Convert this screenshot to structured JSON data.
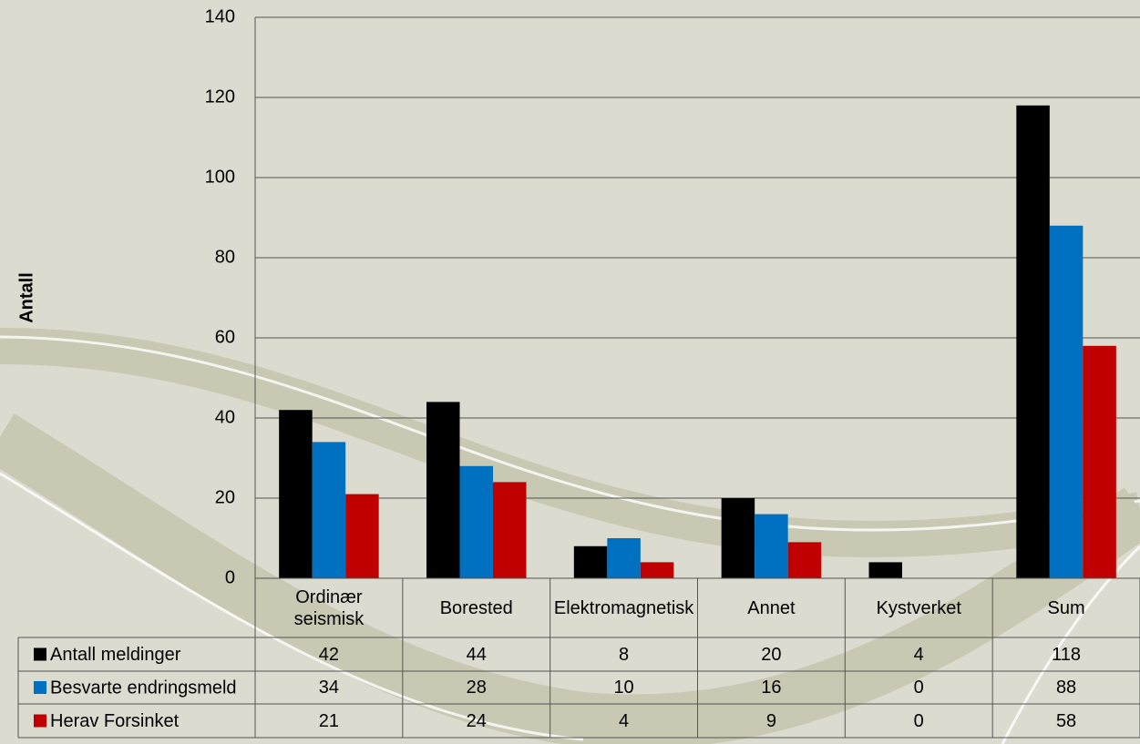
{
  "chart_data": {
    "type": "bar",
    "y_label": "Antall",
    "categories": [
      "Ordinær seismisk",
      "Borested",
      "Elektromagnetisk",
      "Annet",
      "Kystverket",
      "Sum"
    ],
    "series": [
      {
        "name": "Antall meldinger",
        "color": "#000000",
        "values": [
          42,
          44,
          8,
          20,
          4,
          118
        ]
      },
      {
        "name": "Besvarte endringsmeld",
        "color": "#0070c0",
        "values": [
          34,
          28,
          10,
          16,
          0,
          88
        ]
      },
      {
        "name": "Herav Forsinket",
        "color": "#c00000",
        "values": [
          21,
          24,
          4,
          9,
          0,
          58
        ]
      }
    ],
    "ylim": [
      0,
      140
    ],
    "yticks": [
      0,
      20,
      40,
      60,
      80,
      100,
      120,
      140
    ],
    "grid": true
  }
}
